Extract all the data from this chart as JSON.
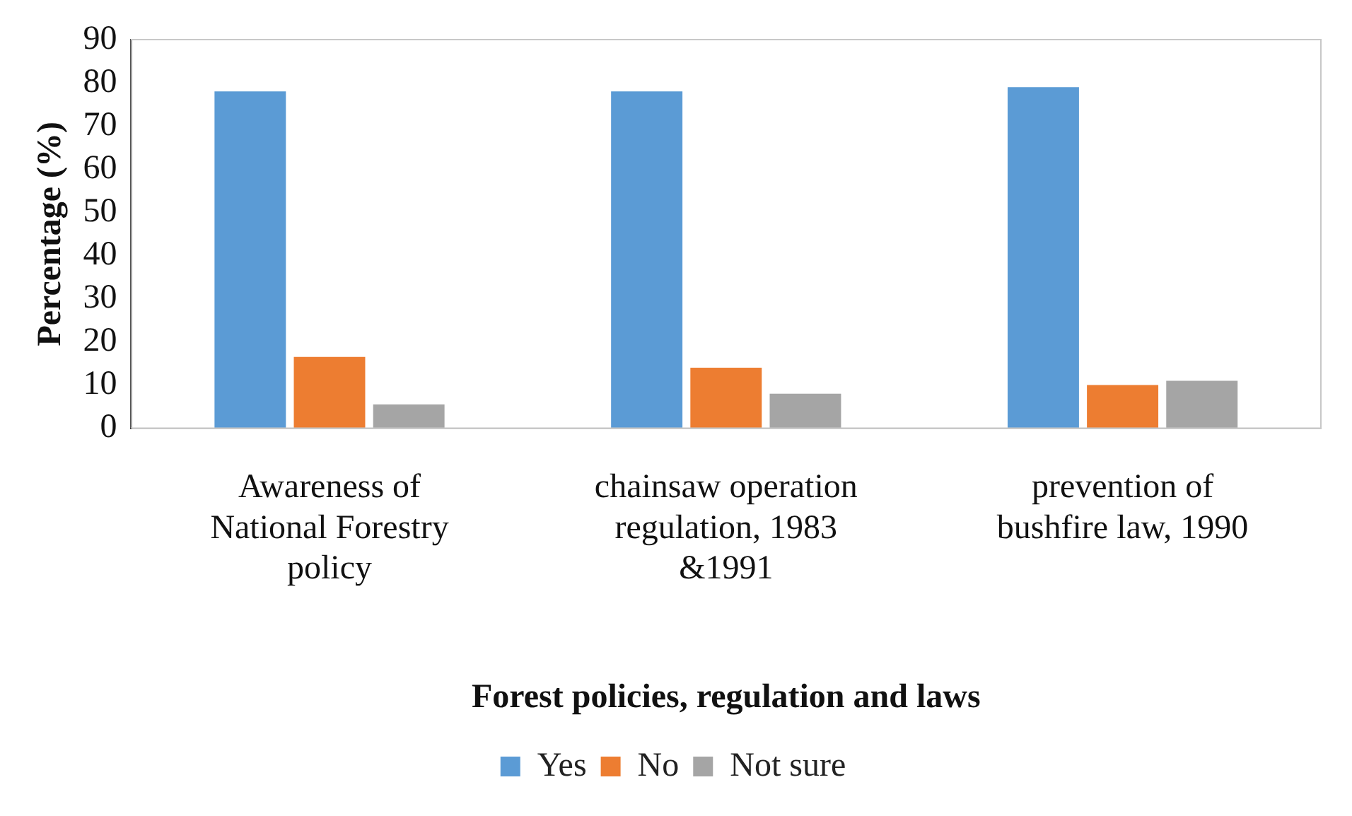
{
  "chart_data": {
    "type": "bar",
    "xlabel": "Forest policies, regulation and laws",
    "ylabel": "Percentage (%)",
    "categories": [
      "Awareness of National Forestry policy",
      "chainsaw operation regulation, 1983 &1991",
      "prevention of bushfire law, 1990"
    ],
    "series": [
      {
        "name": "Yes",
        "color": "#5b9bd5",
        "values": [
          78,
          78,
          79
        ]
      },
      {
        "name": "No",
        "color": "#ed7d31",
        "values": [
          16.5,
          14,
          10
        ]
      },
      {
        "name": "Not sure",
        "color": "#a5a5a5",
        "values": [
          5.5,
          8,
          11
        ]
      }
    ],
    "ylim": [
      0,
      90
    ],
    "yticks": [
      0,
      10,
      20,
      30,
      40,
      50,
      60,
      70,
      80,
      90
    ],
    "grid": false,
    "legend": "bottom"
  }
}
